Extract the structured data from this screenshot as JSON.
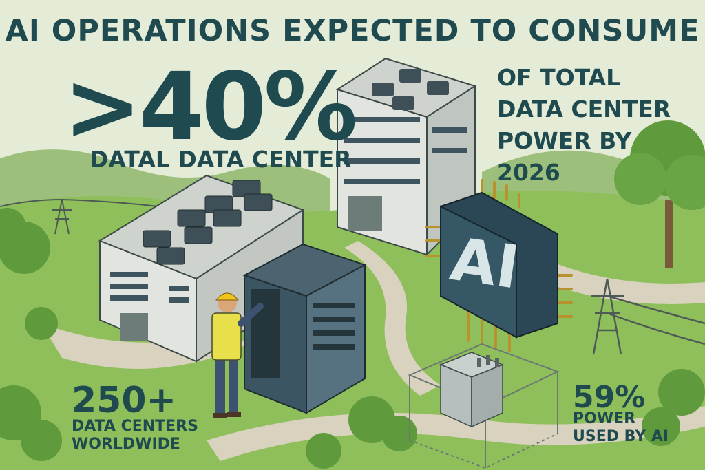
{
  "headline": "AI OPERATIONS EXPECTED TO CONSUME",
  "big_stat": {
    "value": ">40%",
    "subtitle": "DATAL DATA CENTER"
  },
  "right_block": {
    "lines": [
      "OF TOTAL",
      "DATA CENTER",
      "POWER BY",
      "2026"
    ]
  },
  "chip_label": "AI",
  "stat_left": {
    "value": "250+",
    "label_lines": [
      "DATA CENTERS",
      "WORLDWIDE"
    ]
  },
  "stat_right": {
    "value": "59%",
    "label_lines": [
      "POWER",
      "USED BY AI"
    ]
  },
  "colors": {
    "text": "#1f4a4f",
    "sky": "#e4ebd6",
    "grass": "#8fbf5a",
    "hill": "#6fa65a",
    "path": "#d9d2bf",
    "building": "#e2e4df",
    "chip": "#355766",
    "chip_text": "#d9e6e8",
    "worker_vest": "#e8e04a",
    "hardhat": "#f0c419"
  }
}
